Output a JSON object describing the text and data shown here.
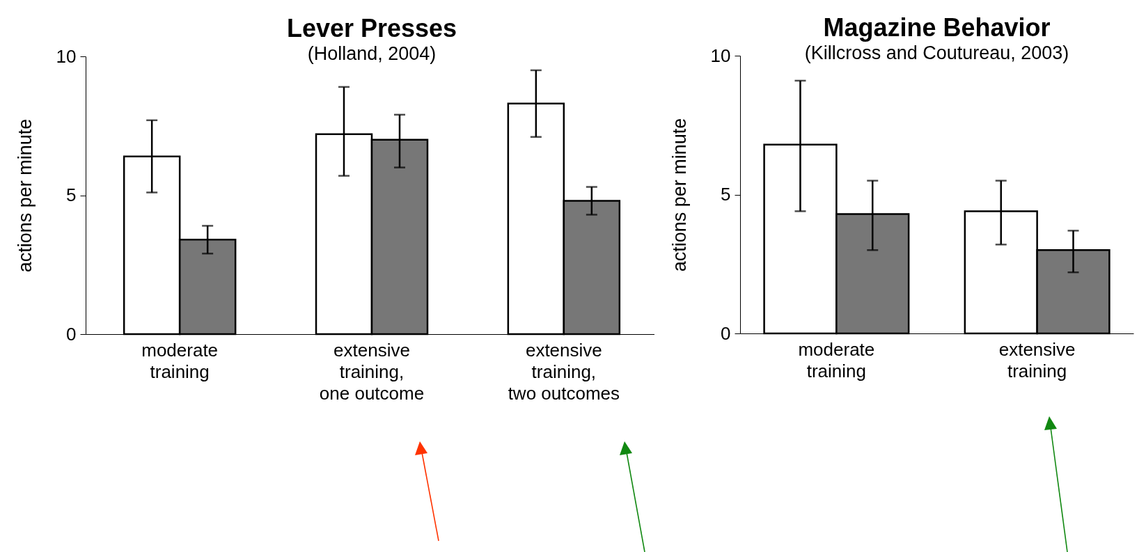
{
  "chart_data": [
    {
      "type": "bar",
      "title": "Lever Presses",
      "subtitle": "(Holland, 2004)",
      "ylabel": "actions per minute",
      "categories": [
        "moderate\ntraining",
        "extensive\ntraining,\none outcome",
        "extensive\ntraining,\ntwo outcomes"
      ],
      "series": [
        {
          "color": "#ffffff",
          "values": [
            6.4,
            7.2,
            8.3
          ],
          "errors": [
            [
              5.1,
              7.7
            ],
            [
              5.7,
              8.9
            ],
            [
              7.1,
              9.5
            ]
          ]
        },
        {
          "color": "#777777",
          "values": [
            3.4,
            7.0,
            4.8
          ],
          "errors": [
            [
              2.9,
              3.9
            ],
            [
              6.0,
              7.9
            ],
            [
              4.3,
              5.3
            ]
          ]
        }
      ],
      "ylim": [
        0,
        10
      ],
      "yticks": [
        0,
        5,
        10
      ],
      "grid": false
    },
    {
      "type": "bar",
      "title": "Magazine Behavior",
      "subtitle": "(Killcross and Coutureau, 2003)",
      "ylabel": "actions per minute",
      "categories": [
        "moderate\ntraining",
        "extensive\ntraining"
      ],
      "series": [
        {
          "color": "#ffffff",
          "values": [
            6.8,
            4.4
          ],
          "errors": [
            [
              4.4,
              9.1
            ],
            [
              3.2,
              5.5
            ]
          ]
        },
        {
          "color": "#777777",
          "values": [
            4.3,
            3.0
          ],
          "errors": [
            [
              3.0,
              5.5
            ],
            [
              2.2,
              3.7
            ]
          ]
        }
      ],
      "ylim": [
        0,
        10
      ],
      "yticks": [
        0,
        5,
        10
      ],
      "grid": false
    }
  ]
}
